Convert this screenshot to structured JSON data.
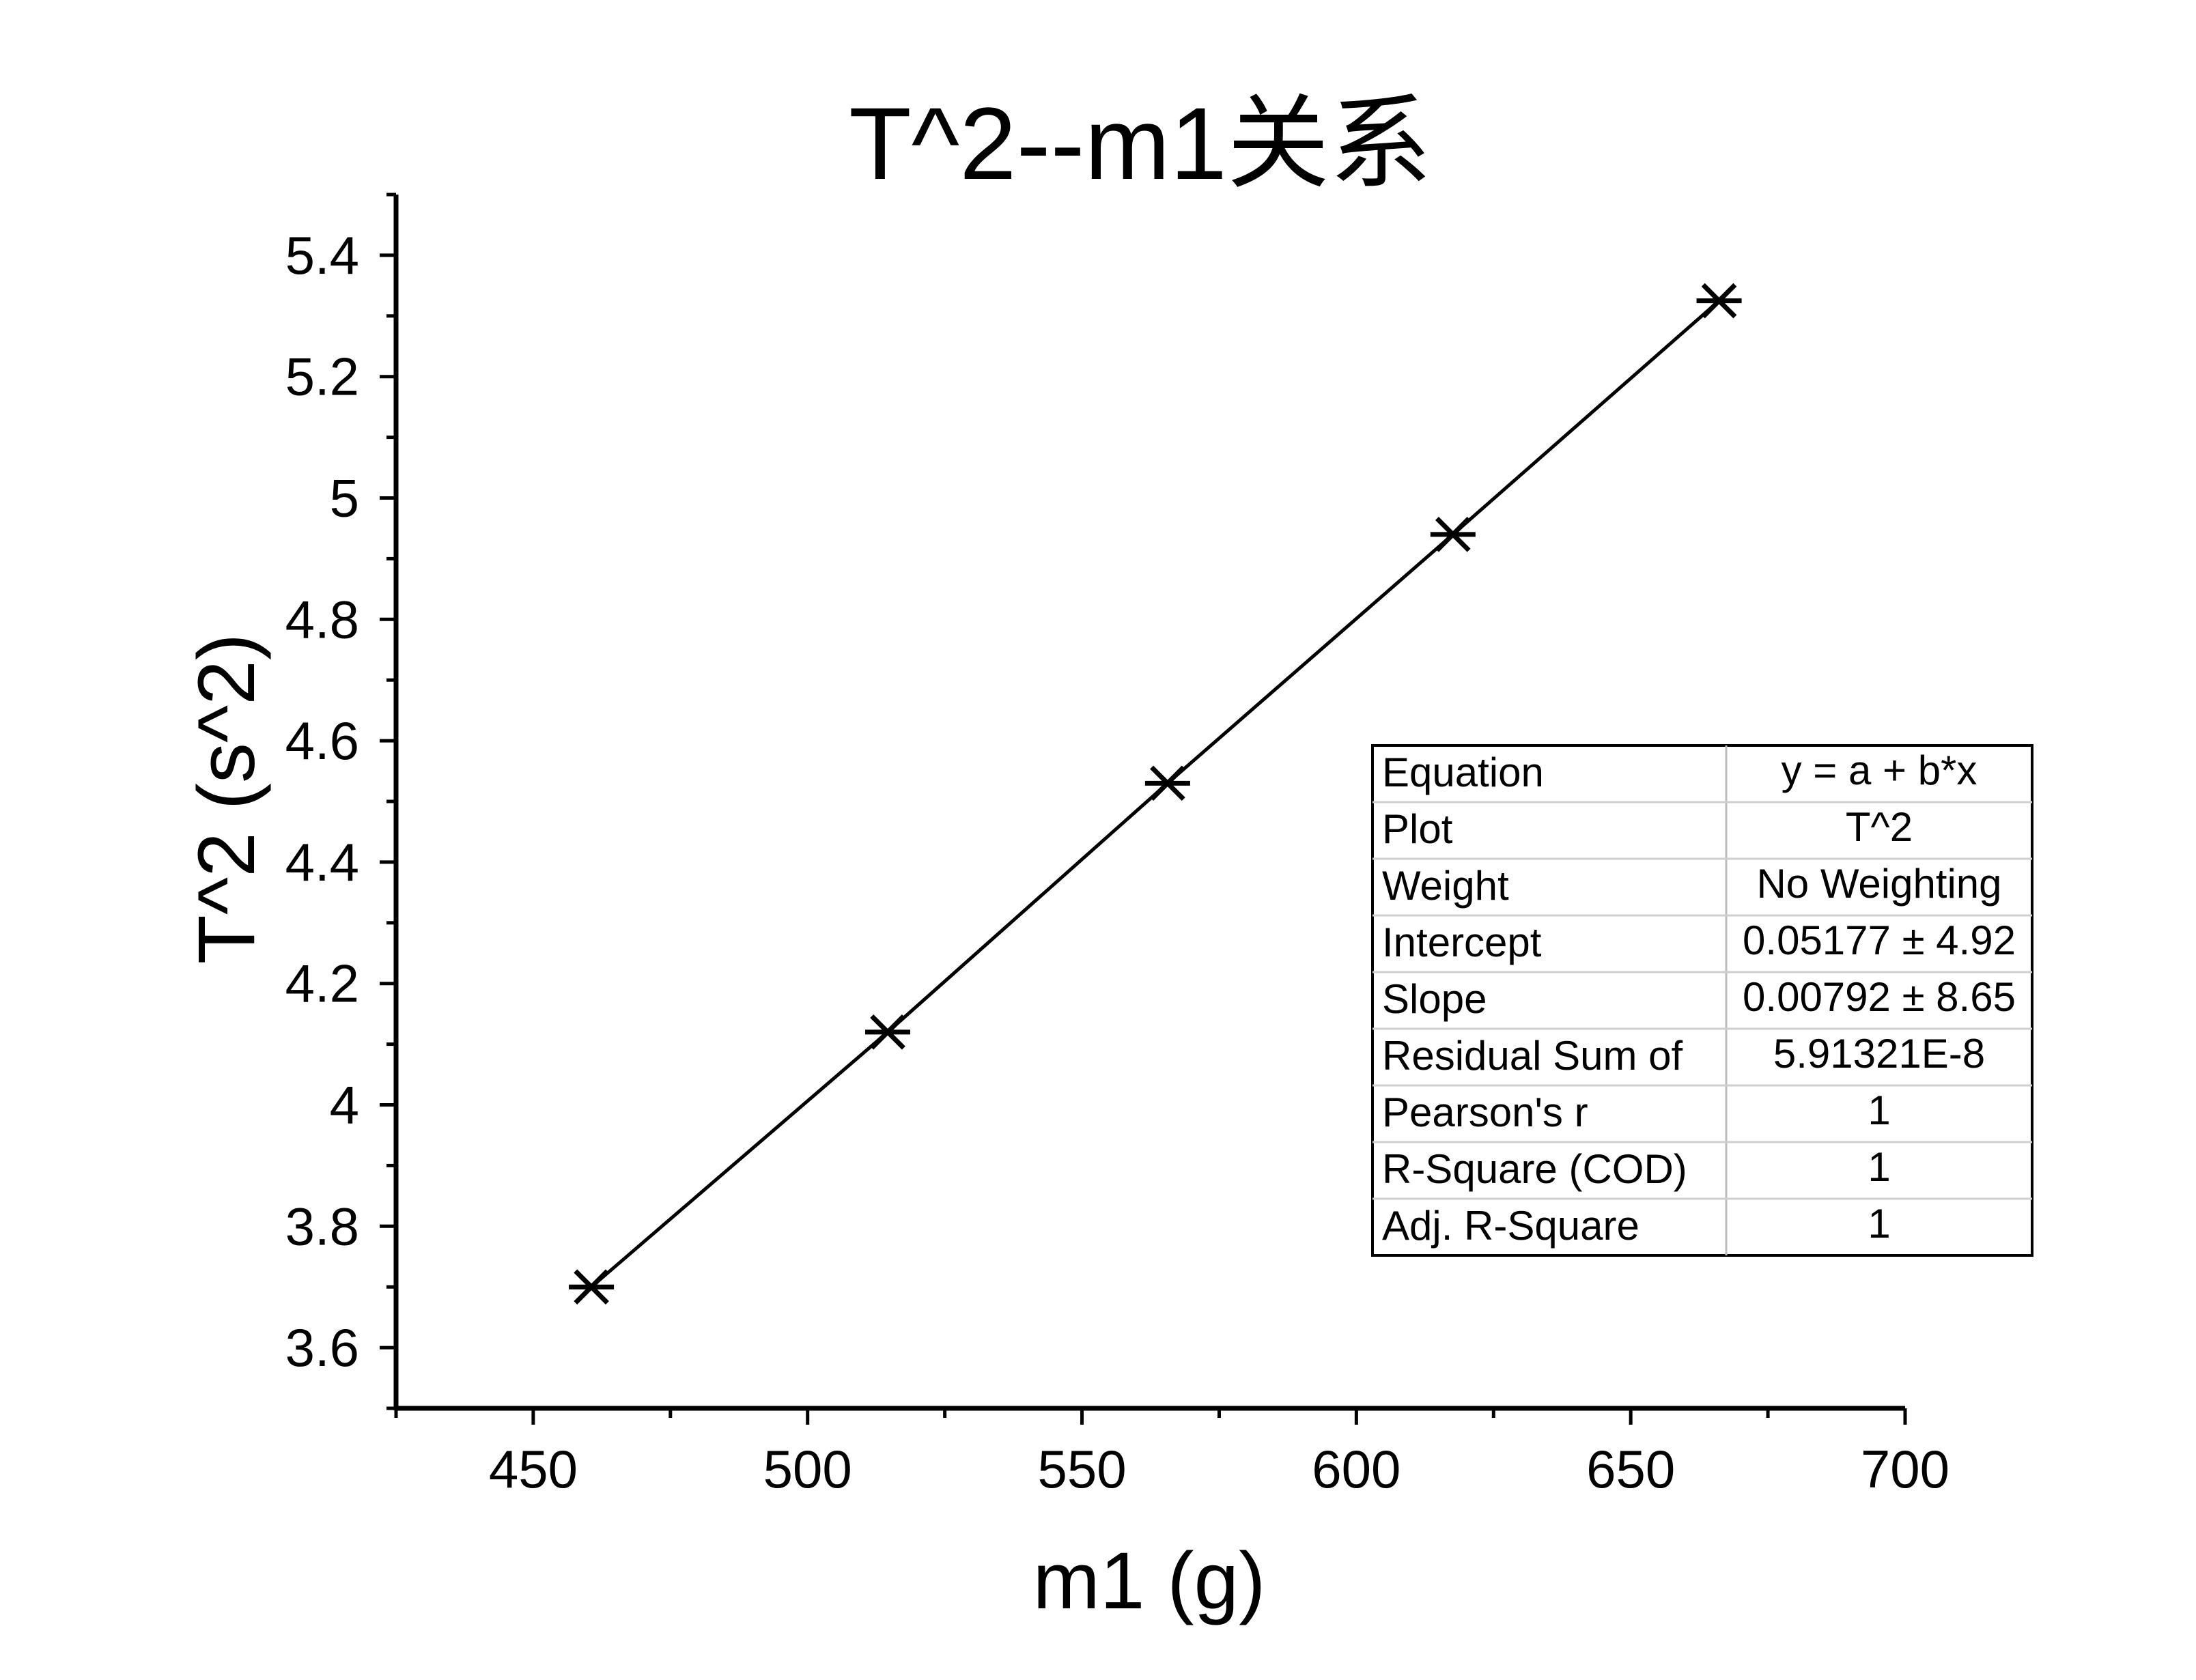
{
  "chart_data": {
    "type": "scatter",
    "title": "T^2--m1关系",
    "xlabel": "m1 (g)",
    "ylabel": "T^2 (s^2)",
    "xlim": [
      425,
      700
    ],
    "ylim": [
      3.5,
      5.5
    ],
    "xticks": [
      450,
      500,
      550,
      600,
      650,
      700
    ],
    "xtick_labels": [
      "450",
      "500",
      "550",
      "600",
      "650",
      "700"
    ],
    "yticks": [
      3.6,
      3.8,
      4.0,
      4.2,
      4.4,
      4.6,
      4.8,
      5.0,
      5.2,
      5.4
    ],
    "ytick_labels": [
      "3.6",
      "3.8",
      "4",
      "4.2",
      "4.4",
      "4.6",
      "4.8",
      "5",
      "5.2",
      "5.4"
    ],
    "grid": false,
    "series": [
      {
        "marker": "asterisk",
        "connected": true,
        "x": [
          460.6,
          514.6,
          565.6,
          617.6,
          666.1
        ],
        "y": [
          3.7,
          4.12,
          4.53,
          4.94,
          5.325
        ]
      }
    ],
    "fit_table": {
      "rows": [
        {
          "label": "Equation",
          "value": "y = a + b*x"
        },
        {
          "label": "Plot",
          "value": "T^2"
        },
        {
          "label": "Weight",
          "value": "No Weighting"
        },
        {
          "label": "Intercept",
          "value": "0.05177 ± 4.92"
        },
        {
          "label": "Slope",
          "value": "0.00792 ± 8.65"
        },
        {
          "label": "Residual Sum of",
          "value": "5.91321E-8"
        },
        {
          "label": "Pearson's r",
          "value": "1"
        },
        {
          "label": "R-Square (COD)",
          "value": "1"
        },
        {
          "label": "Adj. R-Square",
          "value": "1"
        }
      ]
    }
  }
}
